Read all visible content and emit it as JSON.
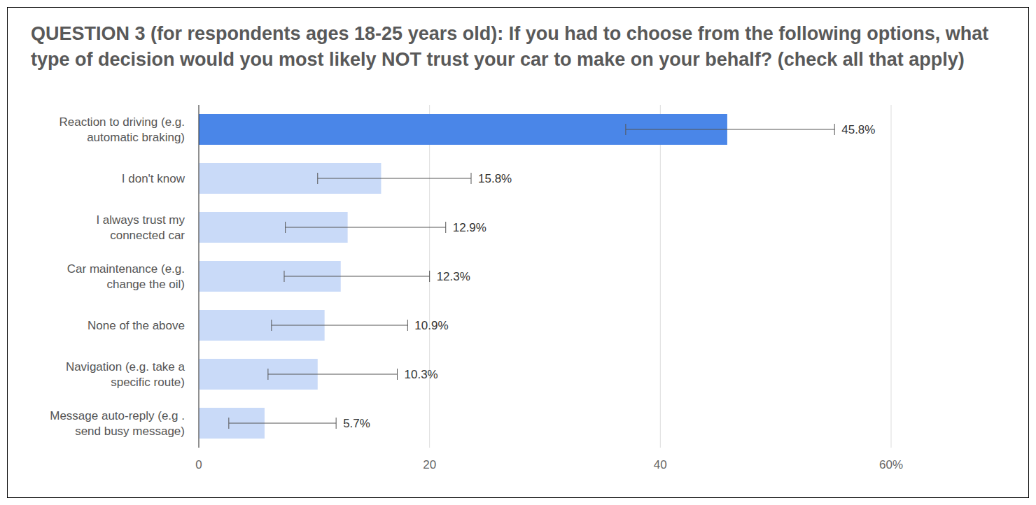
{
  "chart_data": {
    "type": "bar",
    "orientation": "horizontal",
    "title": "QUESTION 3 (for respondents ages 18-25 years old): If you had to choose from the following options, what type of decision would you most likely NOT trust your car to make on your behalf? (check all that apply)",
    "categories": [
      "Reaction to driving (e.g. automatic braking)",
      "I don't know",
      "I always trust my connected car",
      "Car maintenance (e.g. change the oil)",
      "None of the above",
      "Navigation (e.g. take a specific route)",
      "Message auto-reply (e.g . send busy message)"
    ],
    "values": [
      45.8,
      15.8,
      12.9,
      12.3,
      10.9,
      10.3,
      5.7
    ],
    "value_labels": [
      "45.8%",
      "15.8%",
      "12.9%",
      "12.3%",
      "10.9%",
      "10.3%",
      "5.7%"
    ],
    "error_minus": [
      8.8,
      5.5,
      5.4,
      4.9,
      4.6,
      4.3,
      3.1
    ],
    "error_plus": [
      9.3,
      7.8,
      8.5,
      7.7,
      7.2,
      6.9,
      6.2
    ],
    "colors": [
      "#4a86e8",
      "#c9daf8",
      "#c9daf8",
      "#c9daf8",
      "#c9daf8",
      "#c9daf8",
      "#c9daf8"
    ],
    "xlim": [
      0,
      60
    ],
    "xticks": [
      0,
      20,
      40,
      {
        "value": 60,
        "label": "60%"
      }
    ],
    "grid": true,
    "data_labels": true
  }
}
